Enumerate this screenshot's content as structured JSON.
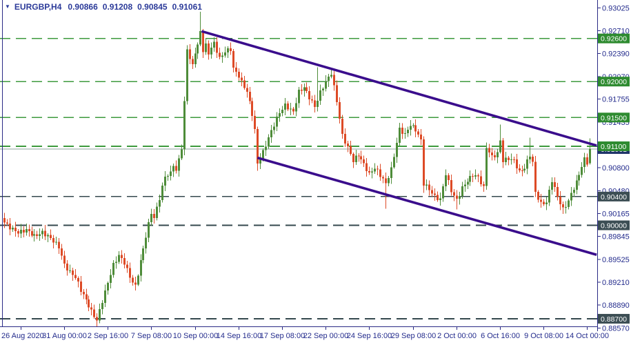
{
  "header": {
    "dropdown_marker": "▼",
    "symbol": "EURGBP,H4",
    "open": "0.90866",
    "high": "0.91208",
    "low": "0.90845",
    "close": "0.91061"
  },
  "colors": {
    "background": "#ffffff",
    "text": "#232b8c",
    "axis": "#2a2a85",
    "bull_candle": "#4e8c39",
    "bear_candle": "#dd4a26",
    "trendline": "#3a0d8c",
    "level_green_line": "#3d9a3d",
    "level_green_bg": "#2e8b30",
    "level_dark_line": "#34484e",
    "level_dark_bg": "#3c4e54",
    "current_price_bg": "#1f3468",
    "current_price_line": "#8fa49e",
    "label_text": "#ffffff"
  },
  "chart_data": {
    "type": "candlestick",
    "title": "EURGBP,H4",
    "symbol": "EURGBP",
    "timeframe": "H4",
    "last_ohlc": {
      "open": 0.90866,
      "high": 0.91208,
      "low": 0.90845,
      "close": 0.91061
    },
    "current_price": 0.91061,
    "ylim": [
      0.88594,
      0.93135
    ],
    "bar_count": 216,
    "y_axis_ticks": [
      0.93025,
      0.9271,
      0.9239,
      0.9207,
      0.91755,
      0.91435,
      0.908,
      0.9048,
      0.90165,
      0.89845,
      0.89525,
      0.8921,
      0.8889,
      0.8857
    ],
    "x_axis_ticks": [
      {
        "bar": 6,
        "label": "26 Aug 2020"
      },
      {
        "bar": 22,
        "label": "31 Aug 00:00"
      },
      {
        "bar": 38,
        "label": "2 Sep 16:00"
      },
      {
        "bar": 54,
        "label": "7 Sep 08:00"
      },
      {
        "bar": 70,
        "label": "10 Sep 00:00"
      },
      {
        "bar": 86,
        "label": "14 Sep 16:00"
      },
      {
        "bar": 102,
        "label": "17 Sep 08:00"
      },
      {
        "bar": 118,
        "label": "22 Sep 00:00"
      },
      {
        "bar": 134,
        "label": "24 Sep 16:00"
      },
      {
        "bar": 150,
        "label": "29 Sep 08:00"
      },
      {
        "bar": 166,
        "label": "2 Oct 00:00"
      },
      {
        "bar": 182,
        "label": "6 Oct 16:00"
      },
      {
        "bar": 198,
        "label": "9 Oct 08:00"
      },
      {
        "bar": 214,
        "label": "14 Oct 00:00"
      }
    ],
    "support_resistance_levels": {
      "green": [
        0.926,
        0.92,
        0.915,
        0.911
      ],
      "dark": [
        0.904,
        0.9,
        0.887
      ]
    },
    "trendlines": [
      {
        "name": "trendline-upper-channel",
        "from_bar": 72.5,
        "from_price": 0.927,
        "to_bar": 217.5,
        "to_price": 0.9111
      },
      {
        "name": "trendline-lower-channel",
        "from_bar": 93,
        "from_price": 0.9094,
        "to_bar": 217.5,
        "to_price": 0.8959
      }
    ],
    "close_anchors": [
      [
        0,
        0.9004
      ],
      [
        2,
        0.8997
      ],
      [
        5,
        0.899
      ],
      [
        8,
        0.8994
      ],
      [
        11,
        0.8985
      ],
      [
        14,
        0.899
      ],
      [
        17,
        0.8982
      ],
      [
        20,
        0.897
      ],
      [
        22,
        0.8945
      ],
      [
        24,
        0.8935
      ],
      [
        26,
        0.8928
      ],
      [
        28,
        0.891
      ],
      [
        30,
        0.8896
      ],
      [
        32,
        0.888
      ],
      [
        34,
        0.8868
      ],
      [
        36,
        0.8895
      ],
      [
        38,
        0.892
      ],
      [
        40,
        0.8945
      ],
      [
        42,
        0.8958
      ],
      [
        44,
        0.8948
      ],
      [
        46,
        0.8928
      ],
      [
        48,
        0.8915
      ],
      [
        50,
        0.895
      ],
      [
        52,
        0.8985
      ],
      [
        54,
        0.9018
      ],
      [
        55,
        0.901
      ],
      [
        57,
        0.9038
      ],
      [
        59,
        0.9068
      ],
      [
        61,
        0.9072
      ],
      [
        62,
        0.9085
      ],
      [
        63,
        0.9075
      ],
      [
        64,
        0.9092
      ],
      [
        65,
        0.9108
      ],
      [
        66,
        0.917
      ],
      [
        67,
        0.9246
      ],
      [
        68,
        0.9232
      ],
      [
        69,
        0.9222
      ],
      [
        70,
        0.9242
      ],
      [
        71,
        0.925
      ],
      [
        72,
        0.927
      ],
      [
        73,
        0.9243
      ],
      [
        74,
        0.925
      ],
      [
        75,
        0.924
      ],
      [
        77,
        0.9254
      ],
      [
        79,
        0.9232
      ],
      [
        81,
        0.9242
      ],
      [
        83,
        0.9245
      ],
      [
        84,
        0.9218
      ],
      [
        86,
        0.9208
      ],
      [
        87,
        0.9199
      ],
      [
        89,
        0.9186
      ],
      [
        91,
        0.9155
      ],
      [
        92,
        0.9132
      ],
      [
        93,
        0.9086
      ],
      [
        95,
        0.9102
      ],
      [
        97,
        0.9122
      ],
      [
        99,
        0.914
      ],
      [
        101,
        0.9157
      ],
      [
        103,
        0.9167
      ],
      [
        106,
        0.9158
      ],
      [
        108,
        0.9186
      ],
      [
        110,
        0.9192
      ],
      [
        112,
        0.9178
      ],
      [
        114,
        0.9165
      ],
      [
        116,
        0.9185
      ],
      [
        118,
        0.92
      ],
      [
        120,
        0.9212
      ],
      [
        122,
        0.9173
      ],
      [
        124,
        0.9125
      ],
      [
        126,
        0.9108
      ],
      [
        128,
        0.909
      ],
      [
        130,
        0.9098
      ],
      [
        132,
        0.9085
      ],
      [
        134,
        0.9071
      ],
      [
        136,
        0.908
      ],
      [
        138,
        0.907
      ],
      [
        140,
        0.9058
      ],
      [
        142,
        0.9078
      ],
      [
        145,
        0.9134
      ],
      [
        147,
        0.9126
      ],
      [
        149,
        0.914
      ],
      [
        151,
        0.9133
      ],
      [
        153,
        0.9118
      ],
      [
        154,
        0.9058
      ],
      [
        156,
        0.905
      ],
      [
        158,
        0.904
      ],
      [
        160,
        0.9036
      ],
      [
        162,
        0.9072
      ],
      [
        164,
        0.9048
      ],
      [
        166,
        0.9035
      ],
      [
        168,
        0.9052
      ],
      [
        170,
        0.9062
      ],
      [
        172,
        0.907
      ],
      [
        174,
        0.9067
      ],
      [
        176,
        0.9052
      ],
      [
        177,
        0.9109
      ],
      [
        179,
        0.9095
      ],
      [
        181,
        0.91
      ],
      [
        182,
        0.9118
      ],
      [
        183,
        0.909
      ],
      [
        185,
        0.9093
      ],
      [
        187,
        0.909
      ],
      [
        189,
        0.9074
      ],
      [
        191,
        0.908
      ],
      [
        193,
        0.9098
      ],
      [
        194,
        0.9087
      ],
      [
        195,
        0.9046
      ],
      [
        197,
        0.903
      ],
      [
        199,
        0.9032
      ],
      [
        201,
        0.9063
      ],
      [
        203,
        0.904
      ],
      [
        205,
        0.9022
      ],
      [
        207,
        0.9034
      ],
      [
        208,
        0.9044
      ],
      [
        210,
        0.906
      ],
      [
        212,
        0.9082
      ],
      [
        213,
        0.9092
      ],
      [
        214,
        0.9087
      ],
      [
        215,
        0.91061
      ]
    ],
    "wick_spikes": [
      {
        "bar": 34,
        "low": 0.8866
      },
      {
        "bar": 72,
        "high": 0.9297
      },
      {
        "bar": 93,
        "low": 0.9076
      },
      {
        "bar": 115,
        "high": 0.922
      },
      {
        "bar": 140,
        "low": 0.9023
      },
      {
        "bar": 154,
        "low": 0.9045
      },
      {
        "bar": 166,
        "low": 0.9022
      },
      {
        "bar": 182,
        "high": 0.914
      },
      {
        "bar": 193,
        "high": 0.9122
      },
      {
        "bar": 205,
        "low": 0.9016
      }
    ]
  }
}
